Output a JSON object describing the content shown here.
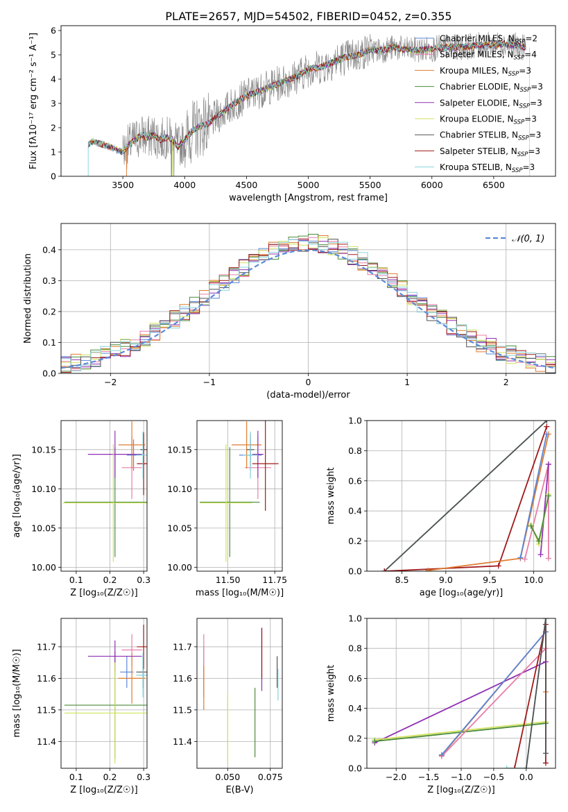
{
  "figure_title": "PLATE=2657, MJD=54502, FIBERID=0452, z=0.355",
  "colors": {
    "Chabrier MILES": "#5b86d6",
    "Salpeter MILES": "#e87da8",
    "Kroupa MILES": "#e07b2e",
    "Chabrier ELODIE": "#4a8a3a",
    "Salpeter ELODIE": "#8e2fb3",
    "Kroupa ELODIE": "#cfe25a",
    "Chabrier STELIB": "#505050",
    "Salpeter STELIB": "#a01818",
    "Kroupa STELIB": "#86d3db",
    "data": "#8a8a8a",
    "gaussian": "#5b8ad6"
  },
  "chart_data": [
    {
      "id": "spectrum",
      "type": "line",
      "ylabel": "Flux [fλ10⁻¹⁷ erg cm⁻² s⁻¹ A⁻¹]",
      "xlabel": "wavelength [Angstrom, rest frame]",
      "xlim": [
        3000,
        7000
      ],
      "ylim": [
        0,
        6.2
      ],
      "xticks": [
        "3500",
        "4000",
        "4500",
        "5000",
        "5500",
        "6000",
        "6500"
      ],
      "yticks": [
        "0",
        "1",
        "2",
        "3",
        "4",
        "5",
        "6"
      ],
      "legend_position": "top-right",
      "legend": [
        {
          "model": "Chabrier MILES",
          "text": "Chabrier MILES, N",
          "sub": "SSP",
          "tail": "=2"
        },
        {
          "model": "Salpeter MILES",
          "text": "Salpeter MILES, N",
          "sub": "SSP",
          "tail": "=4"
        },
        {
          "model": "Kroupa MILES",
          "text": "Kroupa MILES, N",
          "sub": "SSP",
          "tail": "=3"
        },
        {
          "model": "Chabrier ELODIE",
          "text": "Chabrier ELODIE, N",
          "sub": "SSP",
          "tail": "=3"
        },
        {
          "model": "Salpeter ELODIE",
          "text": "Salpeter ELODIE, N",
          "sub": "SSP",
          "tail": "=3"
        },
        {
          "model": "Kroupa ELODIE",
          "text": "Kroupa ELODIE, N",
          "sub": "SSP",
          "tail": "=3"
        },
        {
          "model": "Chabrier STELIB",
          "text": "Chabrier STELIB, N",
          "sub": "SSP",
          "tail": "=3"
        },
        {
          "model": "Salpeter STELIB",
          "text": "Salpeter STELIB, N",
          "sub": "SSP",
          "tail": "=3"
        },
        {
          "model": "Kroupa STELIB",
          "text": "Kroupa STELIB, N",
          "sub": "SSP",
          "tail": "=3"
        }
      ],
      "continuum": {
        "x": [
          3220,
          3260,
          3300,
          3350,
          3400,
          3450,
          3500,
          3550,
          3600,
          3650,
          3700,
          3750,
          3800,
          3850,
          3900,
          3950,
          4000,
          4050,
          4100,
          4150,
          4200,
          4300,
          4400,
          4500,
          4600,
          4700,
          4800,
          4900,
          5000,
          5100,
          5200,
          5300,
          5400,
          5500,
          5600,
          5700,
          5800,
          5900,
          6000,
          6100,
          6200,
          6300,
          6400,
          6500,
          6600,
          6700,
          6760
        ],
        "y": [
          1.3,
          1.45,
          1.35,
          1.3,
          1.2,
          1.1,
          1.0,
          1.3,
          1.5,
          1.7,
          1.6,
          1.7,
          1.5,
          1.6,
          1.5,
          1.2,
          1.5,
          1.8,
          2.0,
          2.1,
          2.2,
          2.6,
          3.0,
          3.3,
          3.5,
          3.7,
          3.9,
          4.1,
          4.4,
          4.5,
          4.7,
          4.9,
          5.0,
          5.2,
          5.2,
          5.3,
          5.2,
          5.2,
          5.25,
          5.3,
          5.3,
          5.35,
          5.4,
          5.4,
          5.45,
          5.35,
          5.3
        ]
      }
    },
    {
      "id": "residuals",
      "type": "histogram",
      "ylabel": "Normed distribution",
      "xlabel": "(data-model)/error",
      "xlim": [
        -2.5,
        2.5
      ],
      "ylim": [
        0,
        0.485
      ],
      "xticks": [
        "−2",
        "−1",
        "0",
        "1",
        "2"
      ],
      "yticks": [
        "0.0",
        "0.1",
        "0.2",
        "0.3",
        "0.4"
      ],
      "legend_position": "top-right",
      "gaussian_label": "𝒩(0, 1)",
      "bin_width": 0.1
    },
    {
      "id": "age-vs-Z",
      "type": "errorbar",
      "ylabel": "age  [log₁₀(age/yr)]",
      "xlabel": "Z [log₁₀(Z/Z☉)]",
      "xlim": [
        0.055,
        0.31
      ],
      "ylim": [
        9.995,
        10.187
      ],
      "xticks": [
        "0.1",
        "0.2",
        "0.3"
      ],
      "yticks": [
        "10.00",
        "10.05",
        "10.10",
        "10.15"
      ],
      "points": [
        {
          "model": "Chabrier MILES",
          "x": 0.27,
          "xerr": 0.02,
          "y": 10.143,
          "yerr": 0.02
        },
        {
          "model": "Salpeter MILES",
          "x": 0.265,
          "xerr": 0.03,
          "y": 10.127,
          "yerr": 0.04
        },
        {
          "model": "Kroupa MILES",
          "x": 0.265,
          "xerr": 0.04,
          "y": 10.156,
          "yerr": 0.03
        },
        {
          "model": "Chabrier ELODIE",
          "x": 0.215,
          "xerr": 0.15,
          "y": 10.083,
          "yerr": 0.07
        },
        {
          "model": "Salpeter ELODIE",
          "x": 0.215,
          "xerr": 0.08,
          "y": 10.144,
          "yerr": 0.03
        },
        {
          "model": "Kroupa ELODIE",
          "x": 0.21,
          "xerr": 0.15,
          "y": 10.082,
          "yerr": 0.075
        },
        {
          "model": "Chabrier STELIB",
          "x": 0.3,
          "xerr": 0.01,
          "y": 10.15,
          "yerr": 0.02
        },
        {
          "model": "Salpeter STELIB",
          "x": 0.3,
          "xerr": 0.02,
          "y": 10.132,
          "yerr": 0.04
        },
        {
          "model": "Kroupa STELIB",
          "x": 0.298,
          "xerr": 0.02,
          "y": 10.143,
          "yerr": 0.03
        }
      ]
    },
    {
      "id": "age-vs-mass",
      "type": "errorbar",
      "ylabel": "",
      "xlabel": "mass [log₁₀(M/M☉)]",
      "xlim": [
        11.335,
        11.79
      ],
      "ylim": [
        9.995,
        10.187
      ],
      "xticks": [
        "11.50",
        "11.75"
      ],
      "yticks": [
        "10.00",
        "10.05",
        "10.10",
        "10.15"
      ],
      "points": [
        {
          "model": "Chabrier MILES",
          "x": 11.62,
          "xerr": 0.06,
          "y": 10.143,
          "yerr": 0.02
        },
        {
          "model": "Salpeter MILES",
          "x": 11.66,
          "xerr": 0.07,
          "y": 10.127,
          "yerr": 0.04
        },
        {
          "model": "Kroupa MILES",
          "x": 11.6,
          "xerr": 0.08,
          "y": 10.156,
          "yerr": 0.03
        },
        {
          "model": "Chabrier ELODIE",
          "x": 11.51,
          "xerr": 0.16,
          "y": 10.083,
          "yerr": 0.07
        },
        {
          "model": "Salpeter ELODIE",
          "x": 11.66,
          "xerr": 0.03,
          "y": 10.144,
          "yerr": 0.03
        },
        {
          "model": "Kroupa ELODIE",
          "x": 11.49,
          "xerr": 0.14,
          "y": 10.082,
          "yerr": 0.075
        },
        {
          "model": "Chabrier STELIB",
          "x": 11.62,
          "xerr": 0.02,
          "y": 10.15,
          "yerr": 0.02
        },
        {
          "model": "Salpeter STELIB",
          "x": 11.7,
          "xerr": 0.07,
          "y": 10.132,
          "yerr": 0.06
        },
        {
          "model": "Kroupa STELIB",
          "x": 11.62,
          "xerr": 0.04,
          "y": 10.143,
          "yerr": 0.03
        }
      ]
    },
    {
      "id": "massweight-vs-age",
      "type": "line",
      "ylabel": "mass weight",
      "xlabel": "age  [log₁₀(age/yr)]",
      "xlim": [
        8.1,
        10.25
      ],
      "ylim": [
        0,
        1
      ],
      "xticks": [
        "8.5",
        "9.0",
        "9.5",
        "10.0"
      ],
      "yticks": [
        "0.0",
        "0.2",
        "0.4",
        "0.6",
        "0.8",
        "1.0"
      ],
      "series": [
        {
          "model": "Kroupa STELIB",
          "x": [
            8.3,
            10.15
          ],
          "y": [
            0.0,
            1.0
          ]
        },
        {
          "model": "Chabrier STELIB",
          "x": [
            8.3,
            10.15
          ],
          "y": [
            0.0,
            1.0
          ]
        },
        {
          "model": "Salpeter STELIB",
          "x": [
            8.3,
            9.6,
            10.15
          ],
          "y": [
            0.0,
            0.035,
            0.96
          ]
        },
        {
          "model": "Kroupa MILES",
          "x": [
            8.8,
            9.85,
            10.17
          ],
          "y": [
            0.005,
            0.085,
            0.91
          ]
        },
        {
          "model": "Chabrier MILES",
          "x": [
            9.85,
            10.15
          ],
          "y": [
            0.09,
            0.91
          ]
        },
        {
          "model": "Salpeter MILES",
          "x": [
            9.9,
            10.17,
            10.17
          ],
          "y": [
            0.08,
            0.71,
            0.085
          ]
        },
        {
          "model": "Salpeter ELODIE",
          "x": [
            10.08,
            10.17
          ],
          "y": [
            0.11,
            0.71
          ]
        },
        {
          "model": "Kroupa ELODIE",
          "x": [
            9.97,
            10.06,
            10.17
          ],
          "y": [
            0.31,
            0.18,
            0.51
          ]
        },
        {
          "model": "Chabrier ELODIE",
          "x": [
            9.97,
            10.06,
            10.17
          ],
          "y": [
            0.3,
            0.2,
            0.5
          ]
        }
      ]
    },
    {
      "id": "mass-vs-Z",
      "type": "errorbar",
      "ylabel": "mass [log₁₀(M/M☉)]",
      "xlabel": "Z [log₁₀(Z/Z☉)]",
      "xlim": [
        0.055,
        0.31
      ],
      "ylim": [
        11.315,
        11.79
      ],
      "xticks": [
        "0.1",
        "0.2",
        "0.3"
      ],
      "yticks": [
        "11.4",
        "11.5",
        "11.6",
        "11.7"
      ],
      "points": [
        {
          "model": "Chabrier MILES",
          "x": 0.25,
          "xerr": 0.02,
          "y": 11.62,
          "yerr": 0.05
        },
        {
          "model": "Salpeter MILES",
          "x": 0.265,
          "xerr": 0.03,
          "y": 11.69,
          "yerr": 0.05
        },
        {
          "model": "Kroupa MILES",
          "x": 0.265,
          "xerr": 0.04,
          "y": 11.6,
          "yerr": 0.08
        },
        {
          "model": "Chabrier ELODIE",
          "x": 0.215,
          "xerr": 0.15,
          "y": 11.515,
          "yerr": 0.17
        },
        {
          "model": "Salpeter ELODIE",
          "x": 0.215,
          "xerr": 0.08,
          "y": 11.67,
          "yerr": 0.05
        },
        {
          "model": "Kroupa ELODIE",
          "x": 0.215,
          "xerr": 0.15,
          "y": 11.49,
          "yerr": 0.16
        },
        {
          "model": "Chabrier STELIB",
          "x": 0.298,
          "xerr": 0.02,
          "y": 11.62,
          "yerr": 0.05
        },
        {
          "model": "Salpeter STELIB",
          "x": 0.3,
          "xerr": 0.02,
          "y": 11.7,
          "yerr": 0.07
        },
        {
          "model": "Kroupa STELIB",
          "x": 0.298,
          "xerr": 0.02,
          "y": 11.61,
          "yerr": 0.07
        }
      ]
    },
    {
      "id": "mass-vs-EBV",
      "type": "errorbar",
      "ylabel": "",
      "xlabel": "E(B-V)",
      "xlim": [
        0.032,
        0.082
      ],
      "ylim": [
        11.315,
        11.79
      ],
      "xticks": [
        "0.050",
        "0.075"
      ],
      "yticks": [
        "11.4",
        "11.5",
        "11.6",
        "11.7"
      ],
      "points": [
        {
          "model": "Chabrier MILES",
          "x": 0.036,
          "xerr": 0,
          "y": 11.62,
          "yerr": 0.08
        },
        {
          "model": "Salpeter MILES",
          "x": 0.036,
          "xerr": 0,
          "y": 11.66,
          "yerr": 0.08
        },
        {
          "model": "Kroupa MILES",
          "x": 0.036,
          "xerr": 0,
          "y": 11.57,
          "yerr": 0.07
        },
        {
          "model": "Chabrier ELODIE",
          "x": 0.066,
          "xerr": 0,
          "y": 11.46,
          "yerr": 0.11
        },
        {
          "model": "Salpeter ELODIE",
          "x": 0.07,
          "xerr": 0,
          "y": 11.66,
          "yerr": 0.1
        },
        {
          "model": "Kroupa ELODIE",
          "x": 0.05,
          "xerr": 0,
          "y": 11.44,
          "yerr": 0.11
        },
        {
          "model": "Chabrier STELIB",
          "x": 0.079,
          "xerr": 0,
          "y": 11.62,
          "yerr": 0.05
        },
        {
          "model": "Salpeter STELIB",
          "x": 0.07,
          "xerr": 0,
          "y": 11.68,
          "yerr": 0.08
        },
        {
          "model": "Kroupa STELIB",
          "x": 0.0795,
          "xerr": 0,
          "y": 11.58,
          "yerr": 0.05
        }
      ]
    },
    {
      "id": "massweight-vs-Z",
      "type": "line",
      "ylabel": "mass weight",
      "xlabel": "Z [log₁₀(Z/Z☉)]",
      "xlim": [
        -2.45,
        0.45
      ],
      "ylim": [
        0,
        1
      ],
      "xticks": [
        "−2.0",
        "−1.5",
        "−1.0",
        "−0.5",
        "0.0"
      ],
      "yticks": [
        "0.0",
        "0.2",
        "0.4",
        "0.6",
        "0.8",
        "1.0"
      ],
      "series": [
        {
          "model": "Salpeter ELODIE",
          "x": [
            -2.33,
            0.3
          ],
          "y": [
            0.17,
            0.71
          ]
        },
        {
          "model": "Kroupa ELODIE",
          "x": [
            -2.33,
            0.3
          ],
          "y": [
            0.19,
            0.31
          ]
        },
        {
          "model": "Chabrier ELODIE",
          "x": [
            -2.33,
            0.3
          ],
          "y": [
            0.18,
            0.3
          ]
        },
        {
          "model": "Kroupa MILES",
          "x": [
            -1.3,
            0.3,
            0.3
          ],
          "y": [
            0.085,
            0.91,
            0.51
          ]
        },
        {
          "model": "Salpeter MILES",
          "x": [
            -1.3,
            0.3
          ],
          "y": [
            0.08,
            0.8
          ]
        },
        {
          "model": "Chabrier MILES",
          "x": [
            -1.3,
            0.3
          ],
          "y": [
            0.09,
            0.91
          ]
        },
        {
          "model": "Salpeter STELIB",
          "x": [
            -0.18,
            0.3,
            0.3
          ],
          "y": [
            0.0,
            0.96,
            0.035
          ]
        },
        {
          "model": "Kroupa STELIB",
          "x": [
            -0.3,
            0.0,
            0.3
          ],
          "y": [
            0.0,
            0.0,
            1.0
          ]
        },
        {
          "model": "Chabrier STELIB",
          "x": [
            0.0,
            0.3,
            0.3
          ],
          "y": [
            0.0,
            1.0,
            0.1
          ]
        }
      ]
    }
  ]
}
